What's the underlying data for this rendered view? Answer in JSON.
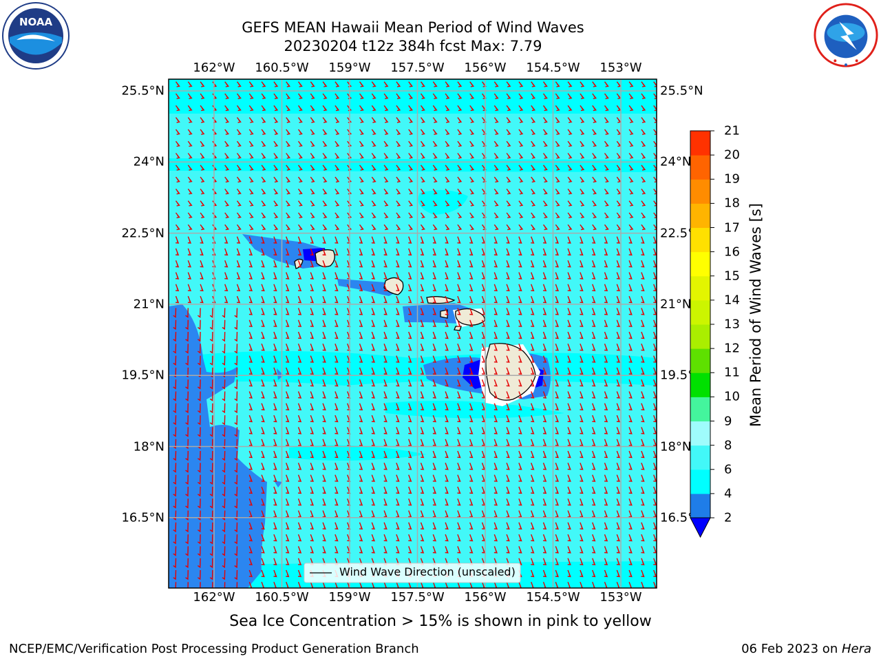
{
  "header": {
    "title_line1": "GEFS MEAN Hawaii Mean Period of Wind Waves",
    "title_line2": "20230204 t12z 384h fcst   Max: 7.79"
  },
  "logos": {
    "left": {
      "name": "noaa-logo",
      "text": "NOAA"
    },
    "right": {
      "name": "nws-logo",
      "text": "NATIONAL WEATHER SERVICE"
    }
  },
  "chart_data": {
    "type": "heatmap",
    "variable": "Mean Period of Wind Waves [s]",
    "max_value": 7.79,
    "x_ticks": [
      "162°W",
      "160.5°W",
      "159°W",
      "157.5°W",
      "156°W",
      "154.5°W",
      "153°W"
    ],
    "x_tick_values": [
      -162,
      -160.5,
      -159,
      -157.5,
      -156,
      -154.5,
      -153
    ],
    "y_ticks": [
      "25.5°N",
      "24°N",
      "22.5°N",
      "21°N",
      "19.5°N",
      "18°N",
      "16.5°N"
    ],
    "y_tick_values": [
      25.5,
      24,
      22.5,
      21,
      19.5,
      18,
      16.5
    ],
    "xlim": [
      -163,
      -152.6
    ],
    "ylim": [
      15.0,
      25.8
    ],
    "grid": true,
    "legend": {
      "label": "Wind Wave Direction (unscaled)",
      "placement": "bottom-center"
    },
    "arrow_color": "#e60000",
    "colorbar": {
      "label": "Mean Period of Wind Waves [s]",
      "levels": [
        2,
        4,
        6,
        8,
        9,
        10,
        11,
        12,
        13,
        14,
        15,
        16,
        17,
        18,
        19,
        20,
        21
      ],
      "colors": [
        "#1f7de8",
        "#00ffff",
        "#42f8f8",
        "#9ffcfc",
        "#44f59d",
        "#00e000",
        "#5ee000",
        "#aaee00",
        "#ccf500",
        "#e3f500",
        "#ffff00",
        "#ffe000",
        "#ffb400",
        "#ff8c00",
        "#ff6400",
        "#ff3200"
      ],
      "under_color": "#0000ff",
      "tick_labels": [
        "21",
        "20",
        "19",
        "18",
        "17",
        "16",
        "15",
        "14",
        "13",
        "12",
        "11",
        "10",
        "9",
        "8",
        "6",
        "4",
        "2"
      ]
    },
    "fill_colors": {
      "ocean_main": "#42f8f8",
      "ocean_alt": "#00ffff",
      "ocean_low": "#2b86f0",
      "ocean_min": "#0000ff",
      "land": "#efebd7"
    }
  },
  "note": "Sea Ice Concentration > 15% is shown in pink to yellow",
  "footer": {
    "left": "NCEP/EMC/Verification Post Processing Product Generation Branch",
    "right_date": "06 Feb 2023 on ",
    "right_host": "Hera"
  }
}
